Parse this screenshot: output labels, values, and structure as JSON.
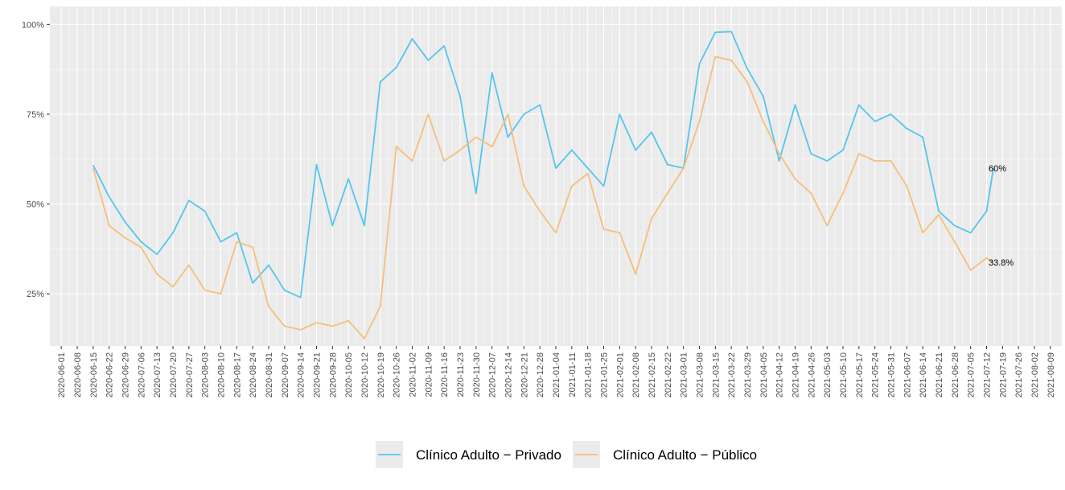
{
  "chart_data": {
    "type": "line",
    "x": [
      "2020-06-15",
      "2020-06-22",
      "2020-06-29",
      "2020-07-06",
      "2020-07-13",
      "2020-07-20",
      "2020-07-27",
      "2020-08-03",
      "2020-08-10",
      "2020-08-17",
      "2020-08-24",
      "2020-08-31",
      "2020-09-07",
      "2020-09-14",
      "2020-09-21",
      "2020-09-28",
      "2020-10-05",
      "2020-10-12",
      "2020-10-19",
      "2020-10-26",
      "2020-11-02",
      "2020-11-09",
      "2020-11-16",
      "2020-11-23",
      "2020-11-30",
      "2020-12-07",
      "2020-12-14",
      "2020-12-21",
      "2020-12-28",
      "2021-01-04",
      "2021-01-11",
      "2021-01-18",
      "2021-01-25",
      "2021-02-01",
      "2021-02-08",
      "2021-02-15",
      "2021-02-22",
      "2021-03-01",
      "2021-03-08",
      "2021-03-15",
      "2021-03-22",
      "2021-03-29",
      "2021-04-05",
      "2021-04-12",
      "2021-04-19",
      "2021-04-26",
      "2021-05-03",
      "2021-05-10",
      "2021-05-17",
      "2021-05-24",
      "2021-05-31",
      "2021-06-07",
      "2021-06-14",
      "2021-06-21",
      "2021-06-28",
      "2021-07-05",
      "2021-07-12",
      "2021-07-15"
    ],
    "series": [
      {
        "name": "Clínico Adulto − Privado",
        "color": "#56c5ee",
        "end_label": "60%",
        "values": [
          60.8,
          52,
          45,
          39.5,
          36,
          42,
          51,
          48,
          39.5,
          42,
          28,
          33,
          26,
          24,
          61,
          44,
          57,
          44,
          84,
          88,
          96,
          90,
          94,
          80,
          53,
          86.5,
          68.6,
          75,
          77.6,
          60,
          65,
          60,
          55,
          75,
          65,
          70,
          61,
          60,
          89,
          97.8,
          98,
          87.7,
          80,
          62,
          77.6,
          64,
          62,
          65,
          77.6,
          73,
          75,
          71,
          68.6,
          48,
          44,
          42,
          48,
          60
        ]
      },
      {
        "name": "Clínico Adulto − Público",
        "color": "#f5bf7c",
        "end_label": "33.8%",
        "values": [
          60,
          44,
          40.6,
          38,
          30.5,
          27,
          33,
          26,
          25,
          39.5,
          38,
          21.5,
          16,
          15,
          17,
          16,
          17.5,
          12.6,
          21.5,
          66,
          62,
          75,
          62,
          65,
          68.6,
          66,
          75,
          55,
          48,
          42,
          55,
          58.5,
          43,
          42,
          30.5,
          46,
          53,
          60,
          73,
          91,
          90,
          84,
          73,
          64,
          57,
          53,
          44,
          53,
          64,
          62,
          62,
          55,
          42,
          47,
          39.5,
          31.6,
          35,
          33.8
        ]
      }
    ],
    "xlim": [
      "2020-05-27",
      "2021-08-14"
    ],
    "xticks": [
      "2020-06-01",
      "2020-06-08",
      "2020-06-15",
      "2020-06-22",
      "2020-06-29",
      "2020-07-06",
      "2020-07-13",
      "2020-07-20",
      "2020-07-27",
      "2020-08-03",
      "2020-08-10",
      "2020-08-17",
      "2020-08-24",
      "2020-08-31",
      "2020-09-07",
      "2020-09-14",
      "2020-09-21",
      "2020-09-28",
      "2020-10-05",
      "2020-10-12",
      "2020-10-19",
      "2020-10-26",
      "2020-11-02",
      "2020-11-09",
      "2020-11-16",
      "2020-11-23",
      "2020-11-30",
      "2020-12-07",
      "2020-12-14",
      "2020-12-21",
      "2020-12-28",
      "2021-01-04",
      "2021-01-11",
      "2021-01-18",
      "2021-01-25",
      "2021-02-01",
      "2021-02-08",
      "2021-02-15",
      "2021-02-22",
      "2021-03-01",
      "2021-03-08",
      "2021-03-15",
      "2021-03-22",
      "2021-03-29",
      "2021-04-05",
      "2021-04-12",
      "2021-04-19",
      "2021-04-26",
      "2021-05-03",
      "2021-05-10",
      "2021-05-17",
      "2021-05-24",
      "2021-05-31",
      "2021-06-07",
      "2021-06-14",
      "2021-06-21",
      "2021-06-28",
      "2021-07-05",
      "2021-07-12",
      "2021-07-19",
      "2021-07-26",
      "2021-08-02",
      "2021-08-09"
    ],
    "ylim": [
      10.5,
      105
    ],
    "yticks": [
      {
        "value": 25,
        "label": "25%"
      },
      {
        "value": 50,
        "label": "50%"
      },
      {
        "value": 75,
        "label": "75%"
      },
      {
        "value": 100,
        "label": "100%"
      }
    ],
    "grid": true,
    "legend": "bottom"
  }
}
